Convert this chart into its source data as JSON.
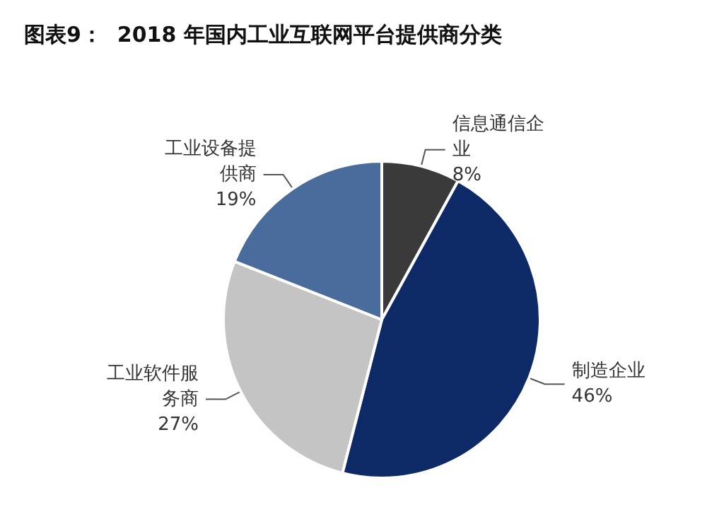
{
  "chart_data": {
    "type": "pie",
    "title": "图表9：  2018 年国内工业互联网平台提供商分类",
    "categories": [
      "信息通信企业",
      "制造企业",
      "工业软件服务商",
      "工业设备提供商"
    ],
    "values": [
      8,
      46,
      27,
      19
    ],
    "colors": [
      "#3a3a3a",
      "#0e2a66",
      "#c4c4c4",
      "#4a6c9c"
    ],
    "value_labels": [
      "8%",
      "46%",
      "27%",
      "19%"
    ],
    "legend": false
  }
}
